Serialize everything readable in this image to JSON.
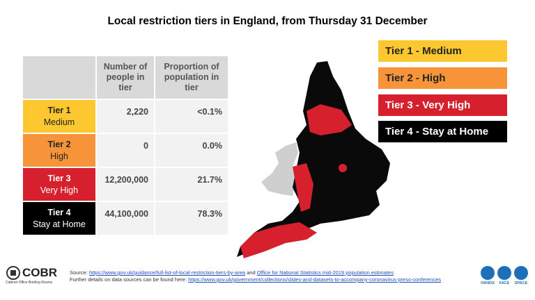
{
  "header": {
    "title": "Local restriction tiers in England, from Thursday 31 December"
  },
  "table": {
    "columns": [
      "Number of people in tier",
      "Proportion of population in tier"
    ],
    "rows": [
      [
        "Tier 1",
        "Medium",
        "2,220",
        "<0.1%"
      ],
      [
        "Tier 2",
        "High",
        "0",
        "0.0%"
      ],
      [
        "Tier 3",
        "Very High",
        "12,200,000",
        "21.7%"
      ],
      [
        "Tier 4",
        "Stay at Home",
        "44,100,000",
        "78.3%"
      ]
    ]
  },
  "legend": [
    "Tier 1 - Medium",
    "Tier 2 - High",
    "Tier 3 - Very High",
    "Tier 4 - Stay at Home"
  ],
  "footer": {
    "source_prefix": "Source: ",
    "source_link": "https://www.gov.uk/guidance/full-list-of-local-restriction-tiers-by-area",
    "source_and": " and ",
    "source_link2": "Office for National Statistics mid-2019 population estimates",
    "details_prefix": "Further details on data sources can be found here: ",
    "details_link": "https://www.gov.uk/government/collections/slides-and-datasets-to-accompany-coronavirus-press-conferences"
  },
  "logo": {
    "name": "COBR",
    "subtitle": "Cabinet Office Briefing Rooms"
  },
  "icons": [
    "HANDS",
    "FACE",
    "SPACE"
  ]
}
